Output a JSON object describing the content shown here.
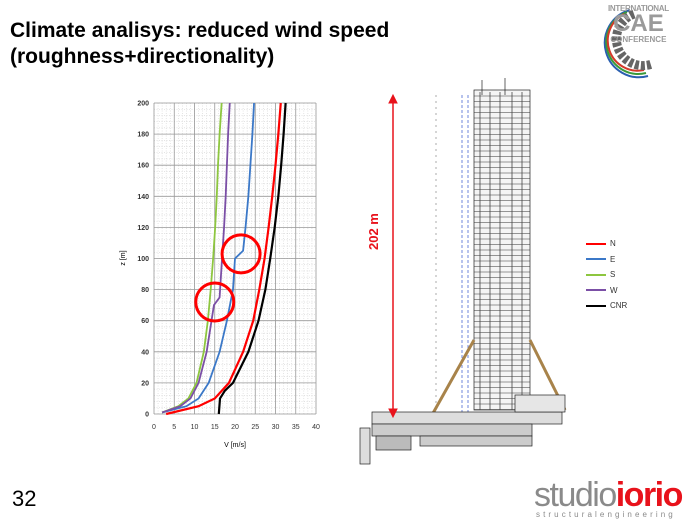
{
  "slide": {
    "title_line1": "Climate analisys: reduced wind speed",
    "title_line2": "(roughness+directionality)",
    "page_number": "32",
    "building_dimension_label": "202 m"
  },
  "logos": {
    "cae": {
      "line1": "INTERNATIONAL",
      "line2": "CAE",
      "line3": "CONFERENCE"
    },
    "studio": {
      "part1": "studio",
      "part2": "iorio",
      "subtitle": "structuralengineering"
    }
  },
  "colors": {
    "N": "#ff0000",
    "E": "#3b78c8",
    "S": "#8dc63f",
    "W": "#7b4fa6",
    "CNR": "#000000",
    "accent": "#e8121b"
  },
  "chart_data": {
    "type": "line",
    "title": "",
    "xlabel": "V [m/s]",
    "ylabel": "z [m]",
    "xlim": [
      0,
      40
    ],
    "ylim": [
      0,
      200
    ],
    "xticks": [
      "0",
      "5",
      "10",
      "15",
      "20",
      "25",
      "30",
      "35",
      "40"
    ],
    "yticks": [
      "0",
      "20",
      "40",
      "60",
      "80",
      "100",
      "120",
      "140",
      "160",
      "180",
      "200"
    ],
    "grid": true,
    "legend_position": "right",
    "series": [
      {
        "name": "N",
        "color": "#ff0000",
        "points": [
          [
            3,
            0
          ],
          [
            11,
            5
          ],
          [
            15,
            10
          ],
          [
            18.5,
            20
          ],
          [
            22,
            40
          ],
          [
            24.5,
            60
          ],
          [
            26,
            80
          ],
          [
            27.3,
            100
          ],
          [
            28.3,
            120
          ],
          [
            29.2,
            140
          ],
          [
            30,
            160
          ],
          [
            30.7,
            180
          ],
          [
            31.3,
            200
          ]
        ]
      },
      {
        "name": "E",
        "color": "#3b78c8",
        "points": [
          [
            2,
            1
          ],
          [
            8,
            5
          ],
          [
            11,
            10
          ],
          [
            13.5,
            20
          ],
          [
            16.2,
            40
          ],
          [
            18,
            60
          ],
          [
            19.5,
            80
          ],
          [
            20,
            100
          ],
          [
            22,
            105
          ],
          [
            22.6,
            120
          ],
          [
            23.3,
            140
          ],
          [
            23.8,
            160
          ],
          [
            24.3,
            180
          ],
          [
            24.7,
            200
          ]
        ]
      },
      {
        "name": "S",
        "color": "#8dc63f",
        "points": [
          [
            2,
            1
          ],
          [
            6,
            5
          ],
          [
            8.5,
            10
          ],
          [
            10.5,
            20
          ],
          [
            12.3,
            40
          ],
          [
            13.3,
            60
          ],
          [
            14,
            80
          ],
          [
            14.6,
            100
          ],
          [
            15.1,
            120
          ],
          [
            15.5,
            140
          ],
          [
            15.8,
            160
          ],
          [
            16.2,
            180
          ],
          [
            16.7,
            200
          ]
        ]
      },
      {
        "name": "W",
        "color": "#7b4fa6",
        "points": [
          [
            2,
            1
          ],
          [
            6.5,
            5
          ],
          [
            9,
            10
          ],
          [
            11,
            20
          ],
          [
            13,
            40
          ],
          [
            14.2,
            60
          ],
          [
            14.8,
            70
          ],
          [
            16.2,
            75
          ],
          [
            16.8,
            100
          ],
          [
            17.3,
            120
          ],
          [
            17.7,
            140
          ],
          [
            18,
            160
          ],
          [
            18.3,
            180
          ],
          [
            18.7,
            200
          ]
        ]
      },
      {
        "name": "CNR",
        "color": "#000000",
        "points": [
          [
            16,
            0
          ],
          [
            16.3,
            10
          ],
          [
            17.5,
            15
          ],
          [
            19.5,
            20
          ],
          [
            23.3,
            40
          ],
          [
            25.8,
            60
          ],
          [
            27.5,
            80
          ],
          [
            28.7,
            100
          ],
          [
            29.8,
            120
          ],
          [
            30.7,
            140
          ],
          [
            31.4,
            160
          ],
          [
            32,
            180
          ],
          [
            32.5,
            200
          ]
        ]
      }
    ],
    "annotations": [
      {
        "type": "circle",
        "color": "#ff0000",
        "center": [
          21.5,
          103
        ]
      },
      {
        "type": "circle",
        "color": "#ff0000",
        "center": [
          15,
          72
        ]
      }
    ]
  }
}
